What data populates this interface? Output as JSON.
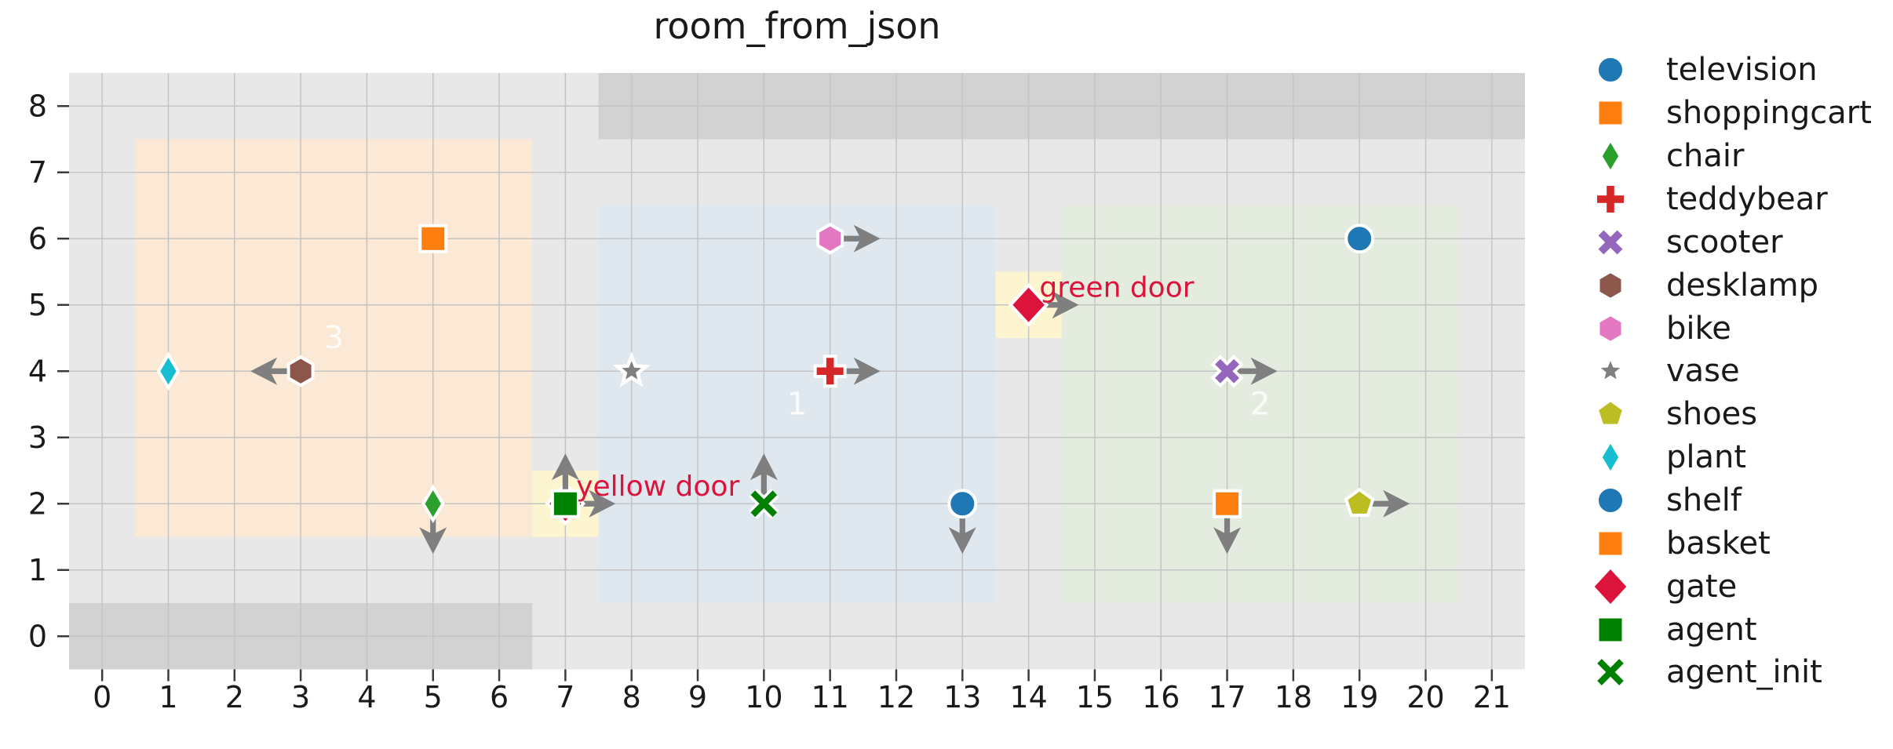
{
  "chart_data": {
    "type": "scatter",
    "title": "room_from_json",
    "xlabel": "",
    "ylabel": "",
    "xlim": [
      -0.5,
      21.5
    ],
    "ylim": [
      -0.5,
      8.5
    ],
    "xticks": [
      0,
      1,
      2,
      3,
      4,
      5,
      6,
      7,
      8,
      9,
      10,
      11,
      12,
      13,
      14,
      15,
      16,
      17,
      18,
      19,
      20,
      21
    ],
    "yticks": [
      0,
      1,
      2,
      3,
      4,
      5,
      6,
      7,
      8
    ],
    "grid": true,
    "legend_position": "right-outside",
    "objects": [
      {
        "name": "plant",
        "marker": "thin-diamond",
        "color": "#17becf",
        "x": 1,
        "y": 4,
        "dir": null
      },
      {
        "name": "desklamp",
        "marker": "hexagon",
        "color": "#8c564b",
        "x": 3,
        "y": 4,
        "dir": "left"
      },
      {
        "name": "shoppingcart",
        "marker": "square",
        "color": "#ff7f0e",
        "x": 5,
        "y": 6,
        "dir": null
      },
      {
        "name": "chair",
        "marker": "thin-diamond",
        "color": "#2ca02c",
        "x": 5,
        "y": 2,
        "dir": "down"
      },
      {
        "name": "vase",
        "marker": "star",
        "color": "#7f7f7f",
        "x": 8,
        "y": 4,
        "dir": null
      },
      {
        "name": "yellow_door",
        "marker": "diamond",
        "color": "#dc143c",
        "x": 7,
        "y": 2,
        "dir": "right"
      },
      {
        "name": "agent",
        "marker": "square",
        "color": "#008000",
        "x": 7,
        "y": 2,
        "dir": "up"
      },
      {
        "name": "agent_init",
        "marker": "thin-x",
        "color": "#008000",
        "x": 10,
        "y": 2,
        "dir": "up"
      },
      {
        "name": "bike",
        "marker": "hexagon",
        "color": "#e377c2",
        "x": 11,
        "y": 6,
        "dir": "right"
      },
      {
        "name": "teddybear",
        "marker": "plus",
        "color": "#d62728",
        "x": 11,
        "y": 4,
        "dir": "right"
      },
      {
        "name": "shelf",
        "marker": "circle",
        "color": "#1f77b4",
        "x": 13,
        "y": 2,
        "dir": "down"
      },
      {
        "name": "green_door",
        "marker": "diamond",
        "color": "#dc143c",
        "x": 14,
        "y": 5,
        "dir": "right"
      },
      {
        "name": "scooter",
        "marker": "fat-x",
        "color": "#9467bd",
        "x": 17,
        "y": 4,
        "dir": "right"
      },
      {
        "name": "basket",
        "marker": "square",
        "color": "#ff7f0e",
        "x": 17,
        "y": 2,
        "dir": "down"
      },
      {
        "name": "shoes",
        "marker": "pentagon",
        "color": "#bcbd22",
        "x": 19,
        "y": 2,
        "dir": "right"
      },
      {
        "name": "television",
        "marker": "circle",
        "color": "#1f77b4",
        "x": 19,
        "y": 6,
        "dir": null
      }
    ],
    "regions": [
      {
        "label": "3",
        "x0": 0.5,
        "x1": 6.5,
        "y0": 1.5,
        "y1": 7.5,
        "fill": "#fbe8d5",
        "label_at": [
          3.5,
          4.5
        ]
      },
      {
        "label": "1",
        "x0": 7.5,
        "x1": 13.5,
        "y0": 0.5,
        "y1": 6.5,
        "fill": "#dfe7ef",
        "label_at": [
          10.5,
          3.5
        ]
      },
      {
        "label": "2",
        "x0": 14.5,
        "x1": 20.5,
        "y0": 0.5,
        "y1": 6.5,
        "fill": "#e3ecdf",
        "label_at": [
          17.5,
          3.5
        ]
      }
    ],
    "walls": [
      {
        "x0": 7.5,
        "x1": 21.5,
        "y0": 7.5,
        "y1": 8.5
      },
      {
        "x0": -0.5,
        "x1": 6.5,
        "y0": -0.5,
        "y1": 0.5
      }
    ],
    "door_highlights": [
      {
        "x0": 6.5,
        "x1": 7.5,
        "y0": 1.5,
        "y1": 2.5
      },
      {
        "x0": 13.5,
        "x1": 14.5,
        "y0": 4.5,
        "y1": 5.5
      }
    ],
    "annotations": [
      {
        "text": "yellow door",
        "x": 7.14,
        "y": 2.26
      },
      {
        "text": "green door",
        "x": 14.14,
        "y": 5.26
      }
    ],
    "legend": [
      {
        "label": "television",
        "marker": "circle",
        "color": "#1f77b4"
      },
      {
        "label": "shoppingcart",
        "marker": "square",
        "color": "#ff7f0e"
      },
      {
        "label": "chair",
        "marker": "thin-diamond",
        "color": "#2ca02c"
      },
      {
        "label": "teddybear",
        "marker": "plus",
        "color": "#d62728"
      },
      {
        "label": "scooter",
        "marker": "fat-x",
        "color": "#9467bd"
      },
      {
        "label": "desklamp",
        "marker": "hexagon",
        "color": "#8c564b"
      },
      {
        "label": "bike",
        "marker": "hexagon",
        "color": "#e377c2"
      },
      {
        "label": "vase",
        "marker": "star",
        "color": "#7f7f7f"
      },
      {
        "label": "shoes",
        "marker": "pentagon",
        "color": "#bcbd22"
      },
      {
        "label": "plant",
        "marker": "thin-diamond",
        "color": "#17becf"
      },
      {
        "label": "shelf",
        "marker": "circle",
        "color": "#1f77b4"
      },
      {
        "label": "basket",
        "marker": "square",
        "color": "#ff7f0e"
      },
      {
        "label": "gate",
        "marker": "diamond",
        "color": "#dc143c"
      },
      {
        "label": "agent",
        "marker": "square",
        "color": "#008000"
      },
      {
        "label": "agent_init",
        "marker": "thin-x",
        "color": "#008000"
      }
    ],
    "style": {
      "figure_bg": "#ffffff",
      "plot_bg": "#e8e8e8",
      "wall": "#d2d2d2",
      "grid": "#c4c4c4",
      "tick": "#3b3b3b",
      "text": "#1a1a1a",
      "arrow": "#7f7f7f",
      "door_highlight": "#fdf4d0",
      "annotation": "#dc143c",
      "region_label": "rgba(255,255,255,0.85)"
    }
  }
}
